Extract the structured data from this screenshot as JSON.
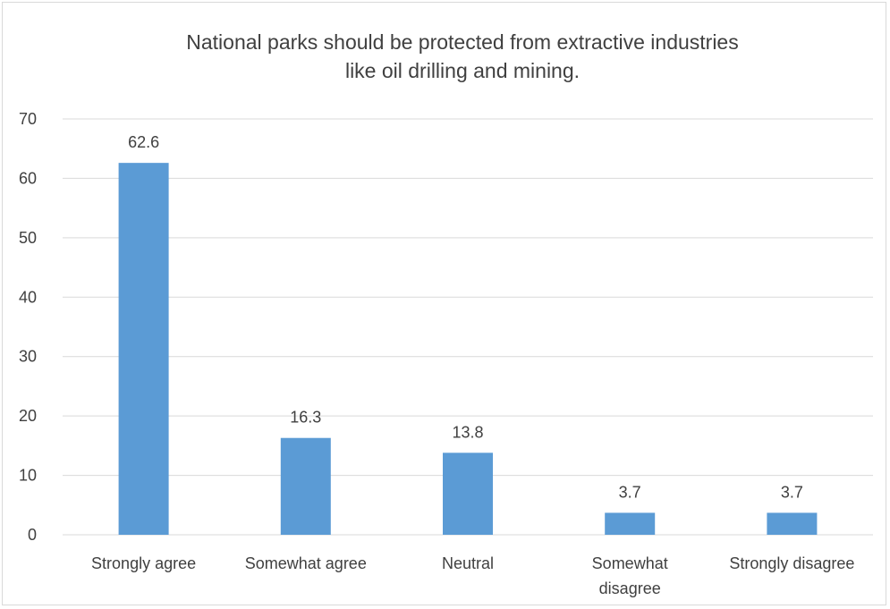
{
  "chart_data": {
    "type": "bar",
    "title_lines": [
      "National parks should be protected from extractive industries",
      "like oil drilling and mining."
    ],
    "categories": [
      [
        "Strongly agree"
      ],
      [
        "Somewhat agree"
      ],
      [
        "Neutral"
      ],
      [
        "Somewhat",
        "disagree"
      ],
      [
        "Strongly disagree"
      ]
    ],
    "values": [
      62.6,
      16.3,
      13.8,
      3.7,
      3.7
    ],
    "data_labels": [
      "62.6",
      "16.3",
      "13.8",
      "3.7",
      "3.7"
    ],
    "ylim": [
      0,
      70
    ],
    "yticks": [
      0,
      10,
      20,
      30,
      40,
      50,
      60,
      70
    ],
    "grid": true,
    "legend": "none",
    "colors": {
      "bar": "#5b9bd5",
      "grid": "#d9d9d9",
      "text": "#404040"
    }
  }
}
